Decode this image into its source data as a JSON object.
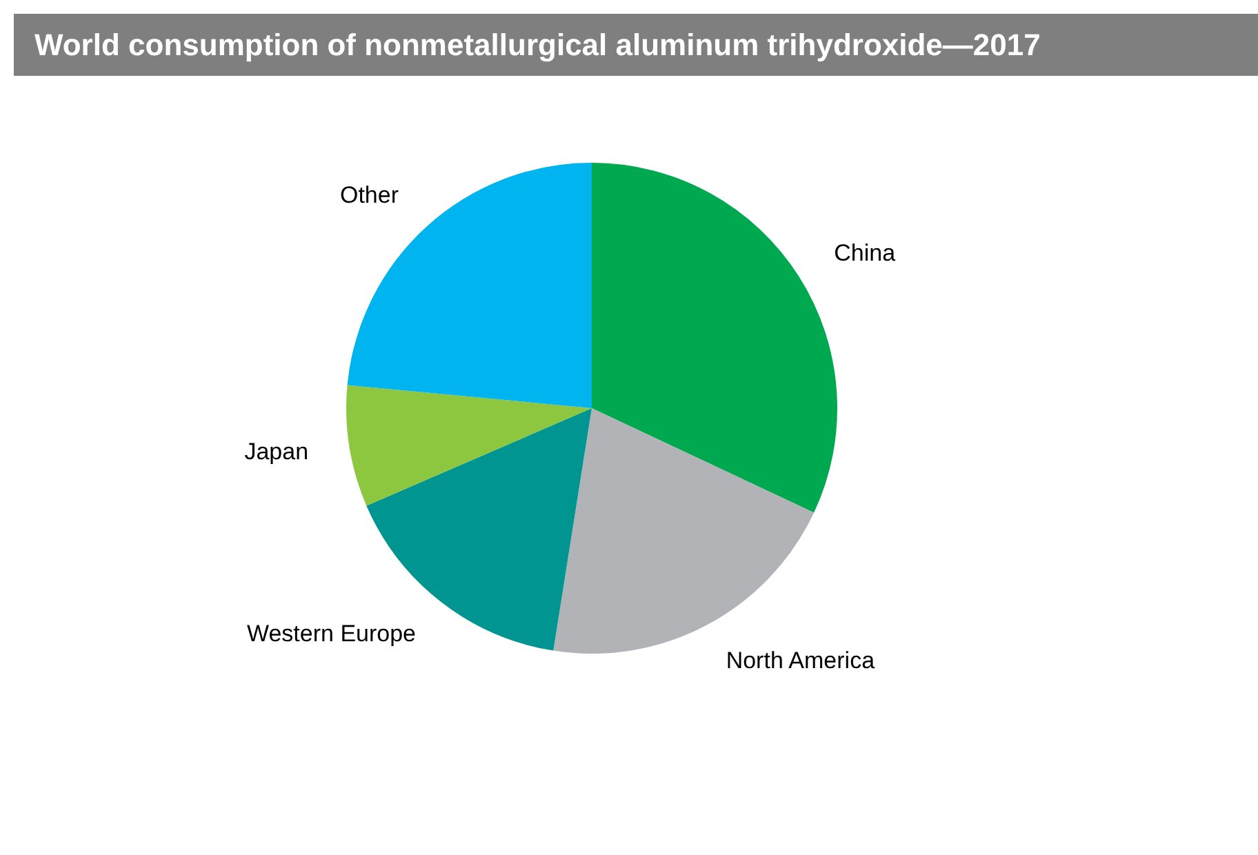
{
  "chart_data": {
    "type": "pie",
    "title": "World consumption of nonmetallurgical aluminum trihydroxide—2017",
    "categories": [
      "China",
      "North America",
      "Western Europe",
      "Japan",
      "Other"
    ],
    "values": [
      32,
      20.5,
      16,
      8,
      23.5
    ],
    "colors": [
      "#00a84f",
      "#b1b3b6",
      "#009591",
      "#8dc63f",
      "#00b4ef"
    ],
    "legend": false
  }
}
